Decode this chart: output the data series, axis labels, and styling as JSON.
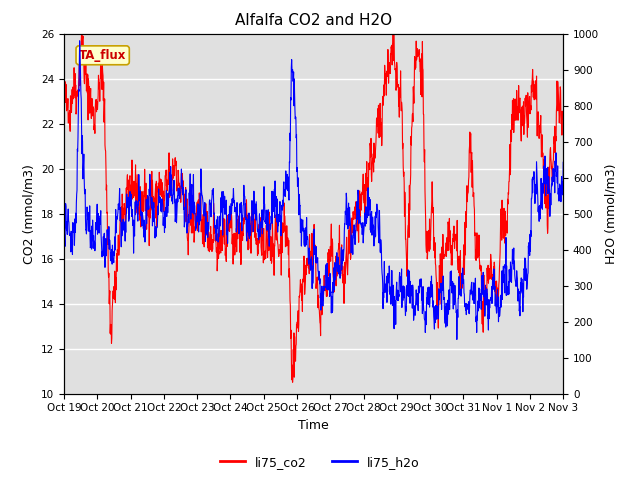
{
  "title": "Alfalfa CO2 and H2O",
  "xlabel": "Time",
  "ylabel_left": "CO2 (mmol/m3)",
  "ylabel_right": "H2O (mmol/m3)",
  "ylim_left": [
    10,
    26
  ],
  "ylim_right": [
    0,
    1000
  ],
  "yticks_left": [
    10,
    12,
    14,
    16,
    18,
    20,
    22,
    24,
    26
  ],
  "yticks_right": [
    0,
    100,
    200,
    300,
    400,
    500,
    600,
    700,
    800,
    900,
    1000
  ],
  "xtick_labels": [
    "Oct 19",
    "Oct 20",
    "Oct 21",
    "Oct 22",
    "Oct 23",
    "Oct 24",
    "Oct 25",
    "Oct 26",
    "Oct 27",
    "Oct 28",
    "Oct 29",
    "Oct 30",
    "Oct 31",
    "Nov 1",
    "Nov 2",
    "Nov 3"
  ],
  "legend_labels": [
    "li75_co2",
    "li75_h2o"
  ],
  "co2_color": "#ff0000",
  "h2o_color": "#0000ff",
  "annotation_text": "TA_flux",
  "fig_bg_color": "#ffffff",
  "plot_bg_color": "#e0e0e0",
  "grid_color": "#ffffff",
  "title_fontsize": 11,
  "label_fontsize": 9,
  "tick_fontsize": 7.5
}
